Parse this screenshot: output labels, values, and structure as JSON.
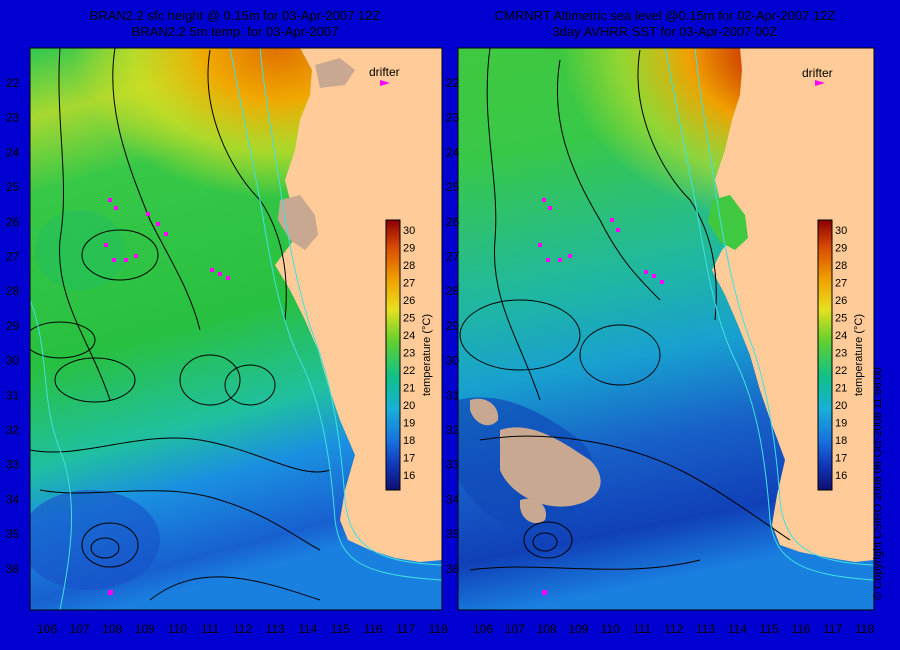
{
  "left_panel": {
    "title_line1": "BRAN2.2 sfc height @ 0.15m for 03-Apr-2007 12Z",
    "title_line2": "BRAN2.2 5m temp. for 03-Apr-2007",
    "drifter_label": "drifter"
  },
  "right_panel": {
    "title_line1": "CMRNRT Altimetric sea level  @0.15m  for 02-Apr-2007 12Z",
    "title_line2": "3day AVHRR SST for 03-Apr-2007 00Z",
    "drifter_label": "drifter"
  },
  "lat_ticks": [
    "22",
    "23",
    "24",
    "25",
    "26",
    "27",
    "28",
    "29",
    "30",
    "31",
    "32",
    "33",
    "34",
    "35",
    "36"
  ],
  "lon_ticks": [
    "106",
    "107",
    "108",
    "109",
    "110",
    "111",
    "112",
    "113",
    "114",
    "115",
    "116",
    "117",
    "118"
  ],
  "colorbar": {
    "label": "temperature (°C)",
    "ticks": [
      "30",
      "29",
      "28",
      "27",
      "26",
      "25",
      "24",
      "23",
      "22",
      "21",
      "20",
      "19",
      "18",
      "17",
      "16"
    ],
    "colors": [
      "#8b0000",
      "#b22000",
      "#d84a00",
      "#e87800",
      "#f0a000",
      "#f6cc10",
      "#d8e020",
      "#80d830",
      "#28c840",
      "#10c088",
      "#18b8c8",
      "#1890e0",
      "#1060d0",
      "#1030b0",
      "#101080"
    ]
  },
  "copyright": "© Copyright CSIRO 2008   06-Oct-2008 11:58:00"
}
